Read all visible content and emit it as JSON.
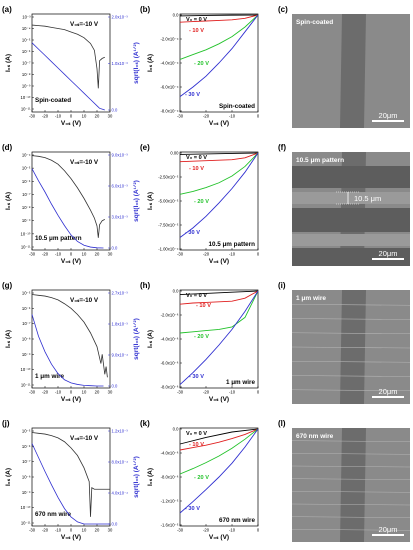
{
  "panel_labels": [
    "(a)",
    "(b)",
    "(c)",
    "(d)",
    "(e)",
    "(f)",
    "(g)",
    "(h)",
    "(i)",
    "(j)",
    "(k)",
    "(l)"
  ],
  "colors": {
    "transfer": "#333333",
    "sqrt": "#2f2fd0",
    "vg0": "#000000",
    "vg10": "#e02020",
    "vg20": "#22c22a",
    "vg30": "#2f2fd0"
  },
  "units": {
    "ids_unit": "(A)",
    "sqrt_unit": "(A¹ᐟ²)",
    "vgs_unit": "(V)",
    "vds_unit": "(V)"
  },
  "rows": [
    {
      "device_label": "Spin-coated",
      "micrograph_label": "Spin-coated",
      "scale_bar": "20μm",
      "pattern_annotation": "",
      "transfer": {
        "vds_label": "V₀ₛ=-10 V",
        "y_ticks": [
          "10⁻³",
          "10⁻⁴",
          "10⁻⁵",
          "10⁻⁶",
          "10⁻⁷",
          "10⁻⁸",
          "10⁻⁹",
          "10⁻¹⁰",
          "10⁻¹¹"
        ],
        "right_ticks": [
          "2.0x10⁻³",
          "1.0x10⁻³",
          "0.0"
        ],
        "x_ticks": [
          "-30",
          "-20",
          "-10",
          "0",
          "10",
          "20",
          "30"
        ]
      },
      "output": {
        "y_ticks": [
          "0.0",
          "-2.0x10⁻⁴",
          "-4.0x10⁻⁴",
          "-6.0x10⁻⁴",
          "-8.0x10⁻⁴"
        ],
        "x_ticks": [
          "-30",
          "-20",
          "-10",
          "0"
        ]
      }
    },
    {
      "device_label": "10.5 μm pattern",
      "micrograph_label": "10.5 μm pattern",
      "scale_bar": "20μm",
      "pattern_annotation": "10.5 μm",
      "transfer": {
        "vds_label": "V₀ₛ=-10 V",
        "y_ticks": [
          "10⁻⁴",
          "10⁻⁵",
          "10⁻⁶",
          "10⁻⁷",
          "10⁻⁸",
          "10⁻⁹",
          "10⁻¹⁰",
          "10⁻¹¹"
        ],
        "right_ticks": [
          "9.0x10⁻³",
          "6.0x10⁻³",
          "3.0x10⁻³",
          "0.0"
        ],
        "x_ticks": [
          "-30",
          "-20",
          "-10",
          "0",
          "10",
          "20",
          "30"
        ]
      },
      "output": {
        "y_ticks": [
          "0.00",
          "-2.50x10⁻⁵",
          "-5.00x10⁻⁵",
          "-7.50x10⁻⁵",
          "-1.00x10⁻⁴"
        ],
        "x_ticks": [
          "-30",
          "-20",
          "-10",
          "0"
        ]
      }
    },
    {
      "device_label": "1 μm wire",
      "micrograph_label": "1 μm wire",
      "scale_bar": "20μm",
      "pattern_annotation": "",
      "transfer": {
        "vds_label": "V₀ₛ=-10 V",
        "y_ticks": [
          "10⁻⁵",
          "10⁻⁶",
          "10⁻⁷",
          "10⁻⁸",
          "10⁻⁹",
          "10⁻¹⁰",
          "10⁻¹¹"
        ],
        "right_ticks": [
          "2.7x10⁻³",
          "1.8x10⁻³",
          "9.0x10⁻⁴",
          "0.0"
        ],
        "x_ticks": [
          "-30",
          "-20",
          "-10",
          "0",
          "10",
          "20",
          "30"
        ]
      },
      "output": {
        "y_ticks": [
          "0.0",
          "-2.0x10⁻⁶",
          "-4.0x10⁻⁶",
          "-6.0x10⁻⁶",
          "-8.0x10⁻⁶"
        ],
        "x_ticks": [
          "-30",
          "-20",
          "-10",
          "0"
        ]
      }
    },
    {
      "device_label": "670 nm wire",
      "micrograph_label": "670 nm wire",
      "scale_bar": "20μm",
      "pattern_annotation": "",
      "transfer": {
        "vds_label": "V₀ₛ=-10 V",
        "y_ticks": [
          "10⁻⁵",
          "10⁻⁶",
          "10⁻⁷",
          "10⁻⁸",
          "10⁻⁹",
          "10⁻¹⁰",
          "10⁻¹¹"
        ],
        "right_ticks": [
          "1.2x10⁻³",
          "8.0x10⁻⁴",
          "4.0x10⁻⁴",
          "0.0"
        ],
        "x_ticks": [
          "-30",
          "-20",
          "-10",
          "0",
          "10",
          "20",
          "30"
        ]
      },
      "output": {
        "y_ticks": [
          "0.0",
          "-4.0x10⁻⁶",
          "-8.0x10⁻⁶",
          "-1.2x10⁻⁵",
          "-1.6x10⁻⁵"
        ],
        "x_ticks": [
          "-30",
          "-20",
          "-10",
          "0"
        ]
      }
    }
  ],
  "output_curve_labels": [
    "V₀ = 0 V",
    "- 10 V",
    "- 20 V",
    "- 30 V"
  ],
  "chart_data": [
    {
      "panel": "(a)",
      "type": "line",
      "xlabel": "V₀ₛ (V)",
      "ylabel": "I₀ₛ (A)",
      "ylabel_right": "sqrt(I₀ₛ) (A¹ᐟ²)",
      "log_y": true,
      "xlim": [
        -30,
        30
      ],
      "ylim": [
        -11,
        -3
      ],
      "right_ylim": [
        0,
        0.002
      ],
      "series": [
        {
          "role": "ids",
          "x": [
            -30,
            -25,
            -20,
            -15,
            -10,
            -5,
            0,
            5,
            10,
            15,
            18,
            20,
            21,
            22,
            24,
            26
          ],
          "log10_y": [
            -3.7,
            -3.75,
            -3.8,
            -3.9,
            -4.0,
            -4.1,
            -4.3,
            -4.5,
            -4.8,
            -5.3,
            -5.9,
            -7.5,
            -9.2,
            -6.8,
            -6.6,
            -6.5
          ]
        },
        {
          "role": "sqrt",
          "x": [
            -30,
            -25,
            -20,
            -15,
            -10,
            -5,
            0,
            5,
            10,
            15,
            20,
            22,
            24,
            26
          ],
          "y": [
            0.0016,
            0.00145,
            0.0013,
            0.00115,
            0.001,
            0.00085,
            0.0007,
            0.00055,
            0.0004,
            0.00025,
            0.0001,
            4e-05,
            2e-05,
            0.0
          ]
        }
      ]
    },
    {
      "panel": "(b)",
      "type": "line",
      "xlabel": "V₀ₛ (V)",
      "ylabel": "I₀ₛ (A)",
      "xlim": [
        -30,
        0
      ],
      "ylim": [
        -0.0008,
        0.0
      ],
      "series": [
        {
          "name": "V₀ = 0 V",
          "x": [
            -30,
            -20,
            -10,
            0
          ],
          "y": [
            -8e-06,
            -4e-06,
            -1e-06,
            0.0
          ]
        },
        {
          "name": "- 10 V",
          "x": [
            -30,
            -25,
            -20,
            -15,
            -10,
            -5,
            0
          ],
          "y": [
            -6e-05,
            -5.5e-05,
            -5e-05,
            -4.5e-05,
            -4e-05,
            -2.8e-05,
            0.0
          ]
        },
        {
          "name": "- 20 V",
          "x": [
            -30,
            -25,
            -20,
            -15,
            -10,
            -5,
            0
          ],
          "y": [
            -0.00037,
            -0.00033,
            -0.00029,
            -0.00024,
            -0.00018,
            -0.0001,
            0.0
          ]
        },
        {
          "name": "- 30 V",
          "x": [
            -30,
            -25,
            -20,
            -15,
            -10,
            -5,
            0
          ],
          "y": [
            -0.00068,
            -0.0006,
            -0.00051,
            -0.0004,
            -0.00028,
            -0.00014,
            0.0
          ]
        }
      ]
    },
    {
      "panel": "(d)",
      "type": "line",
      "xlabel": "V₀ₛ (V)",
      "ylabel": "I₀ₛ (A)",
      "ylabel_right": "sqrt(I₀ₛ) (A¹ᐟ²)",
      "log_y": true,
      "xlim": [
        -30,
        30
      ],
      "ylim": [
        -11,
        -4
      ],
      "right_ylim": [
        0,
        0.009
      ],
      "series": [
        {
          "role": "ids",
          "x": [
            -30,
            -25,
            -20,
            -15,
            -10,
            -5,
            0,
            5,
            10,
            15,
            18,
            20,
            21,
            22,
            24,
            26
          ],
          "log10_y": [
            -4.05,
            -4.1,
            -4.2,
            -4.4,
            -4.7,
            -5.2,
            -5.8,
            -6.5,
            -7.3,
            -8.2,
            -8.8,
            -9.4,
            -10.3,
            -9.3,
            -9.0,
            -8.9
          ]
        },
        {
          "role": "sqrt",
          "x": [
            -30,
            -25,
            -20,
            -15,
            -10,
            -5,
            0,
            5,
            10,
            15,
            20,
            25
          ],
          "y": [
            0.0085,
            0.0072,
            0.006,
            0.0047,
            0.0035,
            0.0024,
            0.0014,
            0.0007,
            0.0003,
            0.0001,
            2e-05,
            0.0
          ]
        }
      ]
    },
    {
      "panel": "(e)",
      "type": "line",
      "xlabel": "V₀ₛ (V)",
      "ylabel": "I₀ₛ (A)",
      "xlim": [
        -30,
        0
      ],
      "ylim": [
        -0.0001,
        0.0
      ],
      "series": [
        {
          "name": "V₀ = 0 V",
          "x": [
            -30,
            -20,
            -10,
            0
          ],
          "y": [
            -1.5e-06,
            -1e-06,
            -5e-07,
            0.0
          ]
        },
        {
          "name": "- 10 V",
          "x": [
            -30,
            -25,
            -20,
            -15,
            -10,
            -5,
            0
          ],
          "y": [
            -9e-06,
            -8.5e-06,
            -8e-06,
            -7.5e-06,
            -7e-06,
            -5e-06,
            0.0
          ]
        },
        {
          "name": "- 20 V",
          "x": [
            -30,
            -25,
            -20,
            -15,
            -10,
            -5,
            0
          ],
          "y": [
            -4.3e-05,
            -4e-05,
            -3.6e-05,
            -3.1e-05,
            -2.4e-05,
            -1.4e-05,
            0.0
          ]
        },
        {
          "name": "- 30 V",
          "x": [
            -30,
            -25,
            -20,
            -15,
            -10,
            -5,
            0
          ],
          "y": [
            -8.8e-05,
            -7.8e-05,
            -6.6e-05,
            -5.2e-05,
            -3.7e-05,
            -2e-05,
            0.0
          ]
        }
      ]
    },
    {
      "panel": "(g)",
      "type": "line",
      "xlabel": "V₀ₛ (V)",
      "ylabel": "I₀ₛ (A)",
      "ylabel_right": "sqrt(I₀ₛ) (A¹ᐟ²)",
      "log_y": true,
      "xlim": [
        -30,
        30
      ],
      "ylim": [
        -11,
        -5
      ],
      "right_ylim": [
        0,
        0.0027
      ],
      "series": [
        {
          "role": "ids",
          "x": [
            -30,
            -25,
            -20,
            -15,
            -10,
            -5,
            0,
            5,
            10,
            15,
            20,
            23,
            24,
            26,
            27,
            28
          ],
          "log10_y": [
            -5.1,
            -5.15,
            -5.2,
            -5.3,
            -5.45,
            -5.7,
            -6.0,
            -6.4,
            -6.9,
            -7.6,
            -8.5,
            -9.6,
            -9.0,
            -10.3,
            -9.8,
            -10.5
          ]
        },
        {
          "role": "sqrt",
          "x": [
            -30,
            -25,
            -20,
            -15,
            -10,
            -5,
            0,
            5,
            10,
            15,
            20,
            25
          ],
          "y": [
            0.0023,
            0.0016,
            0.0011,
            0.0007,
            0.0004,
            0.0002,
            0.0001,
            5e-05,
            2e-05,
            1e-05,
            0.0,
            0.0
          ]
        }
      ]
    },
    {
      "panel": "(h)",
      "type": "line",
      "xlabel": "V₀ₛ (V)",
      "ylabel": "I₀ₛ (A)",
      "xlim": [
        -30,
        0
      ],
      "ylim": [
        -8e-06,
        0.0
      ],
      "series": [
        {
          "name": "V₀ = 0 V",
          "x": [
            -30,
            -20,
            -10,
            0
          ],
          "y": [
            -3e-07,
            -2e-07,
            -1e-07,
            0.0
          ]
        },
        {
          "name": "- 10 V",
          "x": [
            -30,
            -25,
            -20,
            -15,
            -10,
            -5,
            0
          ],
          "y": [
            -1.1e-06,
            -1e-06,
            -9.5e-07,
            -9e-07,
            -8.5e-07,
            -6e-07,
            0.0
          ]
        },
        {
          "name": "- 20 V",
          "x": [
            -30,
            -25,
            -20,
            -15,
            -10,
            -5,
            0
          ],
          "y": [
            -3.5e-06,
            -3.4e-06,
            -3.3e-06,
            -3.2e-06,
            -3e-06,
            -2.2e-06,
            0.0
          ]
        },
        {
          "name": "- 30 V",
          "x": [
            -30,
            -25,
            -20,
            -15,
            -10,
            -5,
            0
          ],
          "y": [
            -7.8e-06,
            -6.8e-06,
            -5.7e-06,
            -4.5e-06,
            -3.2e-06,
            -1.7e-06,
            0.0
          ]
        }
      ]
    },
    {
      "panel": "(j)",
      "type": "line",
      "xlabel": "V₀ₛ (V)",
      "ylabel": "I₀ₛ (A)",
      "ylabel_right": "sqrt(I₀ₛ) (A¹ᐟ²)",
      "log_y": true,
      "xlim": [
        -30,
        30
      ],
      "ylim": [
        -11,
        -5
      ],
      "right_ylim": [
        0,
        0.0012
      ],
      "series": [
        {
          "role": "ids",
          "x": [
            -30,
            -25,
            -20,
            -15,
            -10,
            -5,
            0,
            5,
            10,
            14,
            15,
            16,
            18,
            20,
            25,
            30
          ],
          "log10_y": [
            -5.1,
            -5.15,
            -5.2,
            -5.3,
            -5.45,
            -5.7,
            -6.1,
            -6.6,
            -7.4,
            -8.3,
            -10.6,
            -8.7,
            -8.8,
            -8.8,
            -8.8,
            -8.8
          ]
        },
        {
          "role": "sqrt",
          "x": [
            -30,
            -25,
            -20,
            -15,
            -10,
            -5,
            0,
            5,
            10,
            15,
            20,
            25,
            30
          ],
          "y": [
            0.00115,
            0.00095,
            0.00075,
            0.00056,
            0.00038,
            0.00022,
            0.0001,
            3e-05,
            0.0,
            0.0,
            0.0,
            0.0,
            0.0
          ]
        }
      ]
    },
    {
      "panel": "(k)",
      "type": "line",
      "xlabel": "V₀ₛ (V)",
      "ylabel": "I₀ₛ (A)",
      "xlim": [
        -30,
        0
      ],
      "ylim": [
        -1.6e-05,
        0.0
      ],
      "series": [
        {
          "name": "V₀ = 0 V",
          "x": [
            -30,
            -20,
            -10,
            0
          ],
          "y": [
            -2.5e-06,
            -1.4e-06,
            -5e-07,
            0.0
          ]
        },
        {
          "name": "- 10 V",
          "x": [
            -30,
            -25,
            -20,
            -15,
            -10,
            -5,
            0
          ],
          "y": [
            -3.5e-06,
            -3.1e-06,
            -2.7e-06,
            -2.2e-06,
            -1.6e-06,
            -9e-07,
            0.0
          ]
        },
        {
          "name": "- 20 V",
          "x": [
            -30,
            -25,
            -20,
            -15,
            -10,
            -5,
            0
          ],
          "y": [
            -7.5e-06,
            -6.6e-06,
            -5.6e-06,
            -4.5e-06,
            -3.2e-06,
            -1.7e-06,
            0.0
          ]
        },
        {
          "name": "- 30 V",
          "x": [
            -30,
            -25,
            -20,
            -15,
            -10,
            -5,
            0
          ],
          "y": [
            -1.4e-05,
            -1.21e-05,
            -1.01e-05,
            -8e-06,
            -5.7e-06,
            -3e-06,
            0.0
          ]
        }
      ]
    }
  ]
}
